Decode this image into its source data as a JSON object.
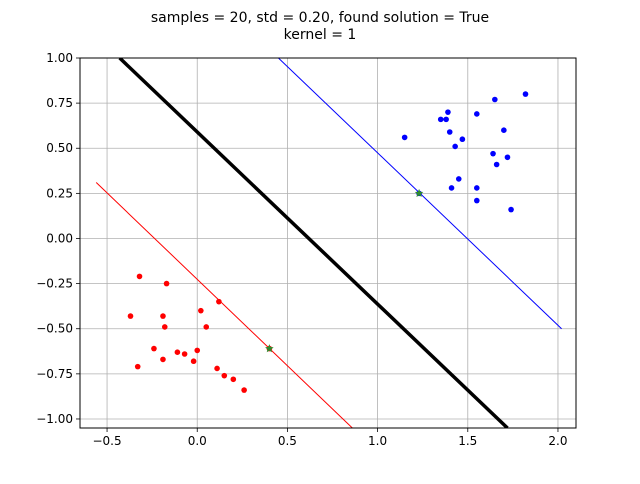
{
  "figure": {
    "title_line1": "samples = 20, std = 0.20, found solution = True",
    "title_line2": "kernel = 1"
  },
  "chart_data": {
    "type": "scatter",
    "title": "samples = 20, std = 0.20, found solution = True\nkernel = 1",
    "xlabel": "",
    "ylabel": "",
    "xlim": [
      -0.65,
      2.1
    ],
    "ylim": [
      -1.05,
      1.0
    ],
    "grid": true,
    "x_ticks": [
      -0.5,
      0.0,
      0.5,
      1.0,
      1.5,
      2.0
    ],
    "x_tick_labels": [
      "−0.5",
      "0.0",
      "0.5",
      "1.0",
      "1.5",
      "2.0"
    ],
    "y_ticks": [
      -1.0,
      -0.75,
      -0.5,
      -0.25,
      0.0,
      0.25,
      0.5,
      0.75,
      1.0
    ],
    "y_tick_labels": [
      "−1.00",
      "−0.75",
      "−0.50",
      "−0.25",
      "0.00",
      "0.25",
      "0.50",
      "0.75",
      "1.00"
    ],
    "lines": [
      {
        "color": "#000000",
        "x": [
          -0.43,
          1.72
        ],
        "y": [
          1.0,
          -1.05
        ]
      },
      {
        "color": "#0000ff",
        "x": [
          0.45,
          2.02
        ],
        "y": [
          1.0,
          -0.5
        ]
      },
      {
        "color": "#ff0000",
        "x": [
          -0.56,
          0.86
        ],
        "y": [
          0.31,
          -1.05
        ]
      }
    ],
    "series": [
      {
        "color": "#0000ff",
        "x": [
          1.82,
          1.65,
          1.39,
          1.35,
          1.38,
          1.55,
          1.15,
          1.4,
          1.7,
          1.47,
          1.43,
          1.64,
          1.72,
          1.66,
          1.45,
          1.55,
          1.41,
          1.55,
          1.74,
          1.23
        ],
        "y": [
          0.8,
          0.77,
          0.7,
          0.66,
          0.66,
          0.69,
          0.56,
          0.59,
          0.6,
          0.55,
          0.51,
          0.47,
          0.45,
          0.41,
          0.33,
          0.28,
          0.28,
          0.21,
          0.16,
          0.25
        ]
      },
      {
        "color": "#ff0000",
        "x": [
          -0.32,
          -0.17,
          -0.37,
          -0.19,
          -0.18,
          0.02,
          0.12,
          0.05,
          -0.24,
          -0.11,
          -0.07,
          0.0,
          -0.19,
          -0.02,
          -0.33,
          0.11,
          0.15,
          0.2,
          0.26,
          0.4
        ],
        "y": [
          -0.21,
          -0.25,
          -0.43,
          -0.43,
          -0.49,
          -0.4,
          -0.35,
          -0.49,
          -0.61,
          -0.63,
          -0.64,
          -0.62,
          -0.67,
          -0.68,
          -0.71,
          -0.72,
          -0.76,
          -0.78,
          -0.84,
          -0.61
        ]
      }
    ],
    "support_vectors": {
      "color": "#2e8b2e",
      "x": [
        1.23,
        0.4
      ],
      "y": [
        0.25,
        -0.61
      ]
    }
  }
}
